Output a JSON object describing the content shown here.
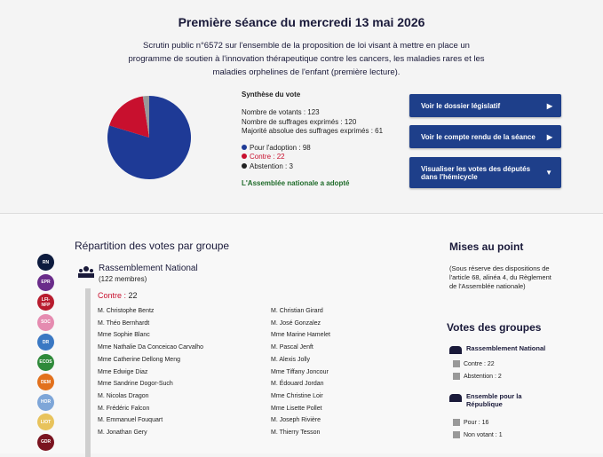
{
  "header": {
    "title": "Première séance du mercredi 13 mai 2026",
    "description": "Scrutin public n°6572 sur l'ensemble de la proposition de loi visant à mettre en place un programme de soutien à l'innovation thérapeutique contre les cancers, les maladies rares et les maladies orphelines de l'enfant (première lecture)."
  },
  "summary": {
    "title": "Synthèse du vote",
    "counts": [
      {
        "label": "Nombre de votants :",
        "value": 123
      },
      {
        "label": "Nombre de suffrages exprimés :",
        "value": 120
      },
      {
        "label": "Majorité absolue des suffrages exprimés :",
        "value": 61
      }
    ],
    "votes": [
      {
        "label": "Pour l'adoption :",
        "value": 98,
        "color": "#1e3a96"
      },
      {
        "label": "Contre :",
        "value": 22,
        "color": "#c8102e"
      },
      {
        "label": "Abstention :",
        "value": 3,
        "color": "#999999"
      }
    ],
    "result": "L'Assemblée nationale a adopté"
  },
  "buttons": [
    "Voir le dossier législatif",
    "Voir le compte rendu de la séance",
    "Visualiser les votes des députés dans l'hémicycle"
  ],
  "groups_sidebar": [
    {
      "label": "RN",
      "color": "#0d1b3e"
    },
    {
      "label": "EPR",
      "color": "#6a2c8a"
    },
    {
      "label": "LFI-NFP",
      "color": "#b81c2e"
    },
    {
      "label": "SOC",
      "color": "#e58bb0"
    },
    {
      "label": "DR",
      "color": "#3a78c3"
    },
    {
      "label": "ECOS",
      "color": "#2f8a3a"
    },
    {
      "label": "DEM",
      "color": "#e2711d"
    },
    {
      "label": "HOR",
      "color": "#7ea6d8"
    },
    {
      "label": "LIOT",
      "color": "#e8c35c"
    },
    {
      "label": "GDR",
      "color": "#7a1420"
    }
  ],
  "repartition": {
    "title": "Répartition des votes par groupe",
    "group": "Rassemblement National",
    "members": "(122 membres)",
    "position": {
      "label": "Contre :",
      "value": 22
    },
    "names": [
      "M. Christophe Bentz",
      "M. Théo Bernhardt",
      "Mme Sophie Blanc",
      "Mme Nathalie Da Conceicao Carvalho",
      "Mme Catherine Dellong Meng",
      "Mme Edwige Diaz",
      "Mme Sandrine Dogor-Such",
      "M. Nicolas Dragon",
      "M. Frédéric Falcon",
      "M. Emmanuel Fouquart",
      "M. Jonathan Gery",
      "M. Christian Girard",
      "M. José Gonzalez",
      "Mme Marine Hamelet",
      "M. Pascal Jenft",
      "M. Alexis Jolly",
      "Mme Tiffany Joncour",
      "M. Édouard Jordan",
      "Mme Christine Loir",
      "Mme Lisette Pollet",
      "M. Joseph Rivière",
      "M. Thierry Tesson"
    ]
  },
  "mises_au_point": {
    "title": "Mises au point",
    "text": "(Sous réserve des dispositions de l'article 68, alinéa 4, du Règlement de l'Assemblée nationale)"
  },
  "votes_groupes": {
    "title": "Votes des groupes",
    "groups": [
      {
        "name": "Rassemblement National",
        "lines": [
          {
            "label": "Contre :",
            "value": 22
          },
          {
            "label": "Abstention :",
            "value": 2
          }
        ]
      },
      {
        "name": "Ensemble pour la République",
        "lines": [
          {
            "label": "Pour :",
            "value": 16
          },
          {
            "label": "Non votant :",
            "value": 1
          }
        ]
      }
    ]
  }
}
